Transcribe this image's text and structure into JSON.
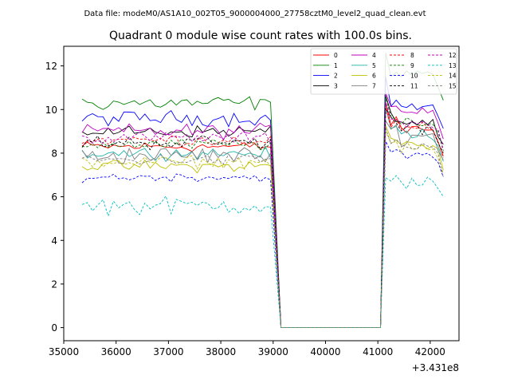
{
  "header": {
    "datafile_label": "Data file: modeM0/AS1A10_002T05_9000004000_27758cztM0_level2_quad_clean.evt"
  },
  "chart_data": {
    "type": "line",
    "title": "Quadrant 0 module wise count rates with 100.0s bins.",
    "xlabel": "",
    "ylabel": "",
    "xlim": [
      35000,
      42550
    ],
    "ylim": [
      -0.6,
      12.9
    ],
    "x_offset_label": "+3.431e8",
    "x_ticks": [
      35000,
      36000,
      37000,
      38000,
      39000,
      40000,
      41000,
      42000
    ],
    "x_tick_labels": [
      "35000",
      "36000",
      "37000",
      "38000",
      "39000",
      "40000",
      "41000",
      "42000"
    ],
    "y_ticks": [
      0,
      2,
      4,
      6,
      8,
      10,
      12
    ],
    "y_tick_labels": [
      "0",
      "2",
      "4",
      "6",
      "8",
      "10",
      "12"
    ],
    "x_segments": {
      "pre_start": 35350,
      "pre_end": 38950,
      "gap_start": 39150,
      "gap_end": 41050,
      "post_start": 41150,
      "post_end": 42250,
      "step": 100
    },
    "legend": {
      "placement": "top-right",
      "columns": 4
    },
    "series": [
      {
        "name": "0",
        "color": "#ff0000",
        "style": "solid",
        "pre_level": 8.3,
        "post_level": 9.1,
        "noise": 0.18,
        "post_peak": 10.3
      },
      {
        "name": "1",
        "color": "#008000",
        "style": "solid",
        "pre_level": 10.3,
        "post_level": 11.7,
        "noise": 0.25,
        "post_peak": 12.3
      },
      {
        "name": "2",
        "color": "#0000ff",
        "style": "solid",
        "pre_level": 9.6,
        "post_level": 10.1,
        "noise": 0.25,
        "post_peak": 11.3
      },
      {
        "name": "3",
        "color": "#000000",
        "style": "solid",
        "pre_level": 9.0,
        "post_level": 9.4,
        "noise": 0.2,
        "post_peak": 10.6
      },
      {
        "name": "4",
        "color": "#bf00bf",
        "style": "solid",
        "pre_level": 9.0,
        "post_level": 10.0,
        "noise": 0.25,
        "post_peak": 11.1
      },
      {
        "name": "5",
        "color": "#20b2aa",
        "style": "solid",
        "pre_level": 8.0,
        "post_level": 8.9,
        "noise": 0.2,
        "post_peak": 9.8
      },
      {
        "name": "6",
        "color": "#bfbf00",
        "style": "solid",
        "pre_level": 7.4,
        "post_level": 8.4,
        "noise": 0.2,
        "post_peak": 9.3
      },
      {
        "name": "7",
        "color": "#808080",
        "style": "solid",
        "pre_level": 7.9,
        "post_level": 8.8,
        "noise": 0.3,
        "post_peak": 9.6
      },
      {
        "name": "8",
        "color": "#ff0000",
        "style": "dashed",
        "pre_level": 8.6,
        "post_level": 9.1,
        "noise": 0.2,
        "post_peak": 10.0
      },
      {
        "name": "9",
        "color": "#008000",
        "style": "dashed",
        "pre_level": 8.4,
        "post_level": 9.3,
        "noise": 0.2,
        "post_peak": 10.5
      },
      {
        "name": "10",
        "color": "#0000ff",
        "style": "dashed",
        "pre_level": 6.9,
        "post_level": 7.9,
        "noise": 0.15,
        "post_peak": 8.4
      },
      {
        "name": "11",
        "color": "#000000",
        "style": "dashed",
        "pre_level": 8.5,
        "post_level": 9.2,
        "noise": 0.25,
        "post_peak": 10.1
      },
      {
        "name": "12",
        "color": "#bf00bf",
        "style": "dashed",
        "pre_level": 8.7,
        "post_level": 9.4,
        "noise": 0.2,
        "post_peak": 10.3
      },
      {
        "name": "13",
        "color": "#00bfbf",
        "style": "dashed",
        "pre_level": 5.6,
        "post_level": 6.6,
        "noise": 0.3,
        "post_peak": 7.1
      },
      {
        "name": "14",
        "color": "#bfbf00",
        "style": "dashed",
        "pre_level": 7.6,
        "post_level": 8.2,
        "noise": 0.2,
        "post_peak": 9.0
      },
      {
        "name": "15",
        "color": "#808080",
        "style": "dashed",
        "pre_level": 7.7,
        "post_level": 8.3,
        "noise": 0.2,
        "post_peak": 9.2
      }
    ]
  }
}
